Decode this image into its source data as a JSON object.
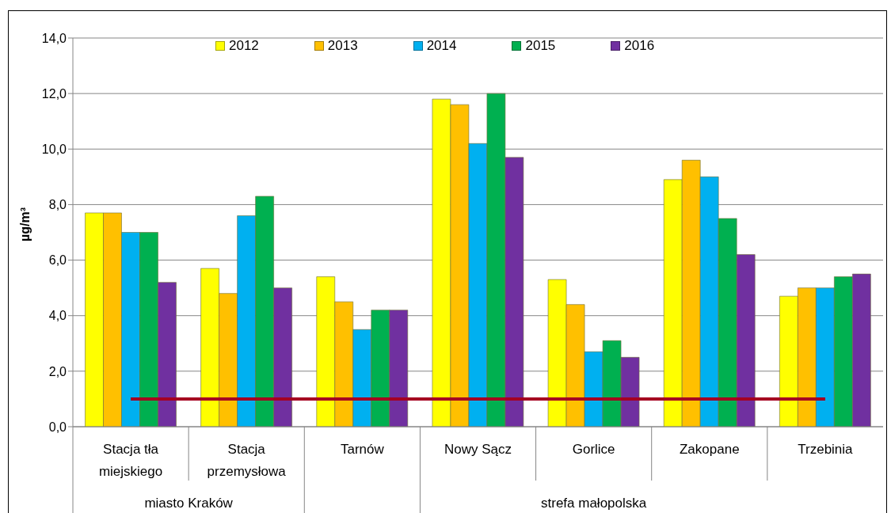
{
  "chart_data": {
    "type": "bar",
    "ylabel": "µg/m³",
    "categories": [
      "Stacja tła miejskiego",
      "Stacja przemysłowa",
      "Tarnów",
      "Nowy Sącz",
      "Gorlice",
      "Zakopane",
      "Trzebinia"
    ],
    "series": [
      {
        "name": "2012",
        "color": "#ffff00",
        "values": [
          7.7,
          5.7,
          5.4,
          11.8,
          5.3,
          8.9,
          4.7
        ]
      },
      {
        "name": "2013",
        "color": "#ffc000",
        "values": [
          7.7,
          4.8,
          4.5,
          11.6,
          4.4,
          9.6,
          5.0
        ]
      },
      {
        "name": "2014",
        "color": "#00b0f0",
        "values": [
          7.0,
          7.6,
          3.5,
          10.2,
          2.7,
          9.0,
          5.0
        ]
      },
      {
        "name": "2015",
        "color": "#00b050",
        "values": [
          7.0,
          8.3,
          4.2,
          12.0,
          3.1,
          7.5,
          5.4
        ]
      },
      {
        "name": "2016",
        "color": "#7030a0",
        "values": [
          5.2,
          5.0,
          4.2,
          9.7,
          2.5,
          6.2,
          5.5
        ]
      }
    ],
    "ylim": [
      0,
      14
    ],
    "yticks": [
      {
        "value": 0,
        "label": "0,0"
      },
      {
        "value": 2,
        "label": "2,0"
      },
      {
        "value": 4,
        "label": "4,0"
      },
      {
        "value": 6,
        "label": "6,0"
      },
      {
        "value": 8,
        "label": "8,0"
      },
      {
        "value": 10,
        "label": "10,0"
      },
      {
        "value": 12,
        "label": "12,0"
      },
      {
        "value": 14,
        "label": "14,0"
      }
    ],
    "grid": "y",
    "legend": "top",
    "ref_lines": [
      {
        "axis": "y",
        "value": 1,
        "color": "#a50021"
      }
    ],
    "annotations": [
      "miasto Kraków",
      "strefa małopolska"
    ]
  }
}
